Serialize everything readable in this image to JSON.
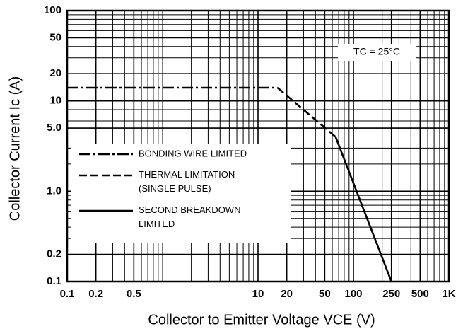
{
  "chart_data": {
    "type": "line",
    "x_label": "Collector to Emitter Voltage  VCE  (V)",
    "y_label": "Collector Current  Ic  (A)",
    "annotation": "TC = 25°C",
    "xlim": [
      0.1,
      1000
    ],
    "ylim": [
      0.1,
      100
    ],
    "x_log": true,
    "y_log": true,
    "grid": true,
    "legend": "lower left",
    "xticks": [
      0.1,
      0.2,
      0.5,
      10,
      20,
      50,
      100,
      250,
      500,
      {
        "value": 1000,
        "label": "1K"
      }
    ],
    "yticks": [
      0.1,
      0.2,
      {
        "value": 1,
        "label": "1.0"
      },
      {
        "value": 5,
        "label": "5.0"
      },
      10,
      20,
      50,
      100
    ],
    "series": [
      {
        "name": "BONDING WIRE LIMITED",
        "color": "#000000",
        "dash": "dashdot",
        "x": [
          0.1,
          16
        ],
        "values": [
          14,
          14
        ]
      },
      {
        "name": "THERMAL LIMITATION\n(SINGLE PULSE)",
        "color": "#000000",
        "dash": "dashed",
        "x": [
          16,
          65
        ],
        "values": [
          14,
          4
        ]
      },
      {
        "name": "SECOND BREAKDOWN\nLIMITED",
        "color": "#000000",
        "dash": "solid",
        "x": [
          65,
          250
        ],
        "values": [
          4,
          0.1
        ]
      }
    ]
  }
}
